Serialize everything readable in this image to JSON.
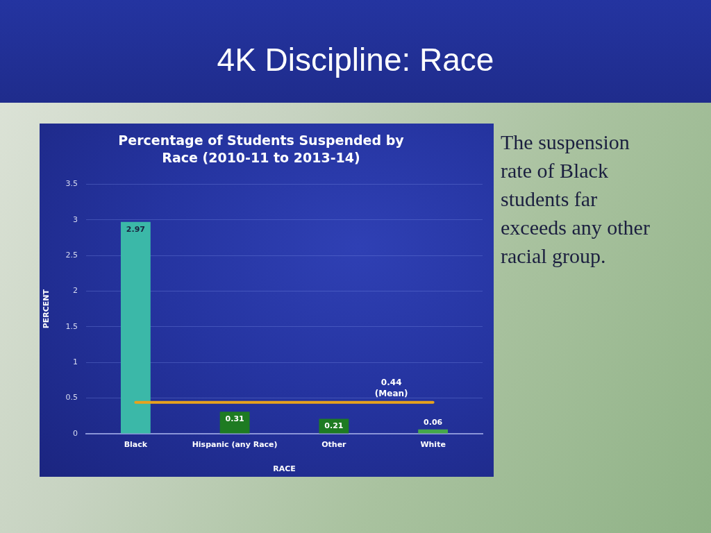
{
  "chart_data": {
    "type": "bar",
    "title": "4K Discipline: Race",
    "subtitle": "Percentage of Students Suspended by Race (2010-11 to 2013-14)",
    "xlabel": "RACE",
    "ylabel": "PERCENT",
    "categories": [
      "Black",
      "Hispanic (any Race)",
      "Other",
      "White"
    ],
    "values": [
      2.97,
      0.31,
      0.21,
      0.06
    ],
    "colors": [
      "#3bb8a8",
      "#1e7b22",
      "#1e7b22",
      "#45a84a"
    ],
    "ylim": [
      0,
      3.5
    ],
    "yticks": [
      0,
      0.5,
      1,
      1.5,
      2,
      2.5,
      3,
      3.5
    ],
    "grid": "y",
    "data_labels": true,
    "ref_lines": [
      {
        "axis": "y",
        "value": 0.44,
        "label": "0.44 (Mean)",
        "color": "#e8a21c"
      }
    ],
    "annotations": [
      "The suspension rate of Black students far exceeds any other racial group."
    ]
  }
}
